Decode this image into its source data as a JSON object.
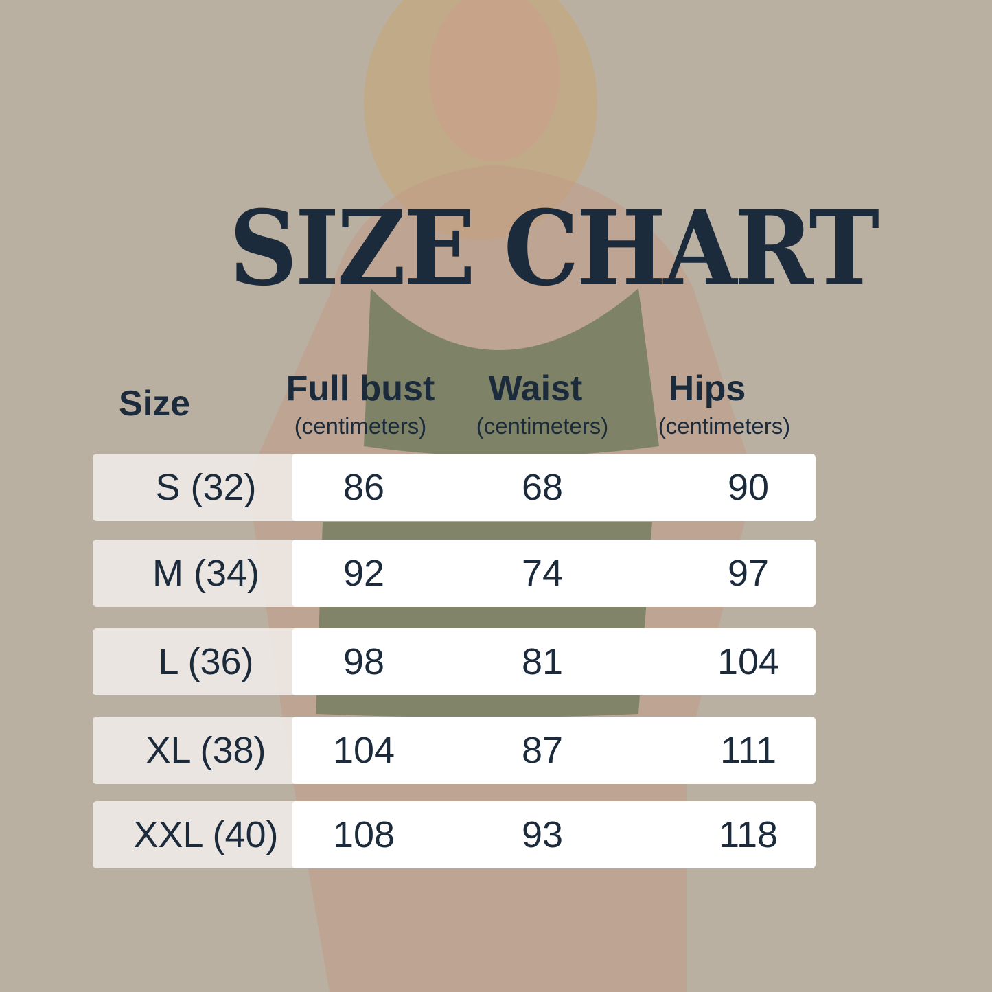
{
  "title": "SIZE CHART",
  "headers": {
    "size": "Size",
    "bust": "Full bust",
    "bust_unit": "(centimeters)",
    "waist": "Waist",
    "waist_unit": "(centimeters)",
    "hips": "Hips",
    "hips_unit": "(centimeters)"
  },
  "rows": [
    {
      "size": "S (32)",
      "bust": "86",
      "waist": "68",
      "hips": "90"
    },
    {
      "size": "M (34)",
      "bust": "92",
      "waist": "74",
      "hips": "97"
    },
    {
      "size": "L (36)",
      "bust": "98",
      "waist": "81",
      "hips": "104"
    },
    {
      "size": "XL (38)",
      "bust": "104",
      "waist": "87",
      "hips": "111"
    },
    {
      "size": "XXL (40)",
      "bust": "108",
      "waist": "93",
      "hips": "118"
    }
  ],
  "colors": {
    "background": "#b9b0a1",
    "text": "#1c2b3c",
    "garment": "#6e7a5c"
  }
}
